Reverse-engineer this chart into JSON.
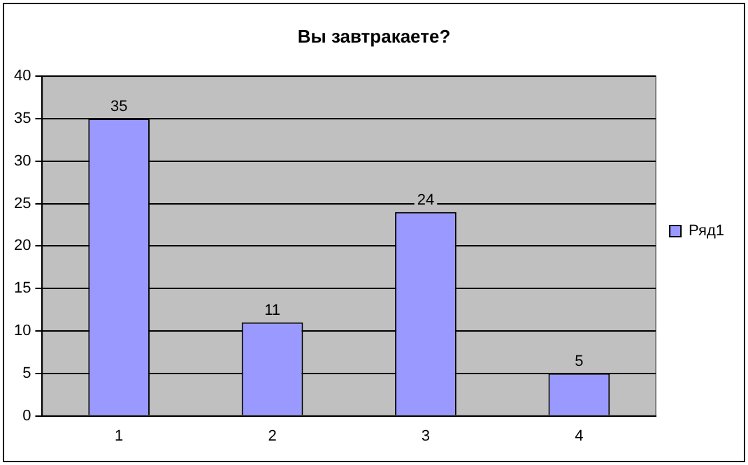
{
  "chart_data": {
    "type": "bar",
    "title": "Вы завтракаете?",
    "categories": [
      "1",
      "2",
      "3",
      "4"
    ],
    "series": [
      {
        "name": "Ряд1",
        "color": "#9999ff",
        "values": [
          35,
          11,
          24,
          5
        ]
      }
    ],
    "ylim": [
      0,
      40
    ],
    "yticks": [
      0,
      5,
      10,
      15,
      20,
      25,
      30,
      35,
      40
    ],
    "grid": "y",
    "legend": "right",
    "data_labels": true
  }
}
